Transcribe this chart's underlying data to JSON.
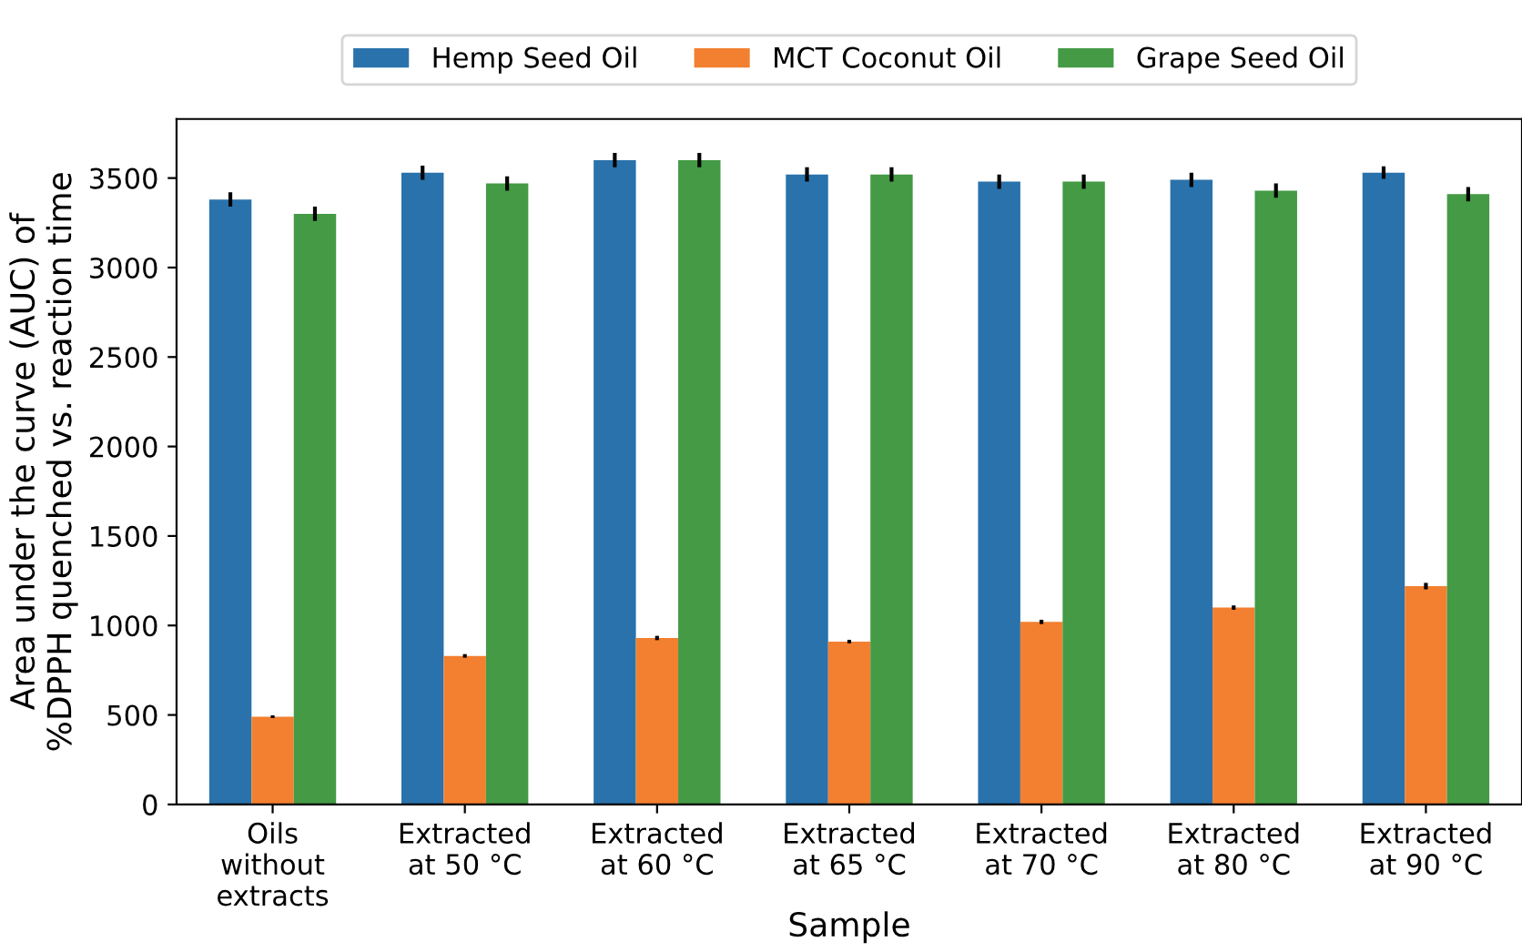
{
  "chart_data": {
    "type": "bar",
    "xlabel": "Sample",
    "ylabel": "Area under the curve (AUC) of\n%DPPH quenched vs. reaction time",
    "categories": [
      "Oils\nwithout\nextracts",
      "Extracted\nat 50 °C",
      "Extracted\nat 60 °C",
      "Extracted\nat 65 °C",
      "Extracted\nat 70 °C",
      "Extracted\nat 80 °C",
      "Extracted\nat 90 °C"
    ],
    "series": [
      {
        "name": "Hemp Seed Oil",
        "color": "#2a72ab",
        "values": [
          3380,
          3530,
          3600,
          3520,
          3480,
          3490,
          3530
        ],
        "errors": [
          40,
          40,
          40,
          40,
          40,
          40,
          35
        ]
      },
      {
        "name": "MCT Coconut Oil",
        "color": "#f28030",
        "values": [
          490,
          830,
          930,
          910,
          1020,
          1100,
          1220
        ],
        "errors": [
          8,
          10,
          12,
          10,
          12,
          12,
          18
        ]
      },
      {
        "name": "Grape Seed Oil",
        "color": "#449a45",
        "values": [
          3300,
          3470,
          3600,
          3520,
          3480,
          3430,
          3410
        ],
        "errors": [
          40,
          40,
          40,
          40,
          40,
          40,
          40
        ]
      }
    ],
    "ylim": [
      0,
      3830
    ],
    "yticks": [
      0,
      500,
      1000,
      1500,
      2000,
      2500,
      3000,
      3500
    ],
    "grid": false,
    "legend": "top"
  }
}
